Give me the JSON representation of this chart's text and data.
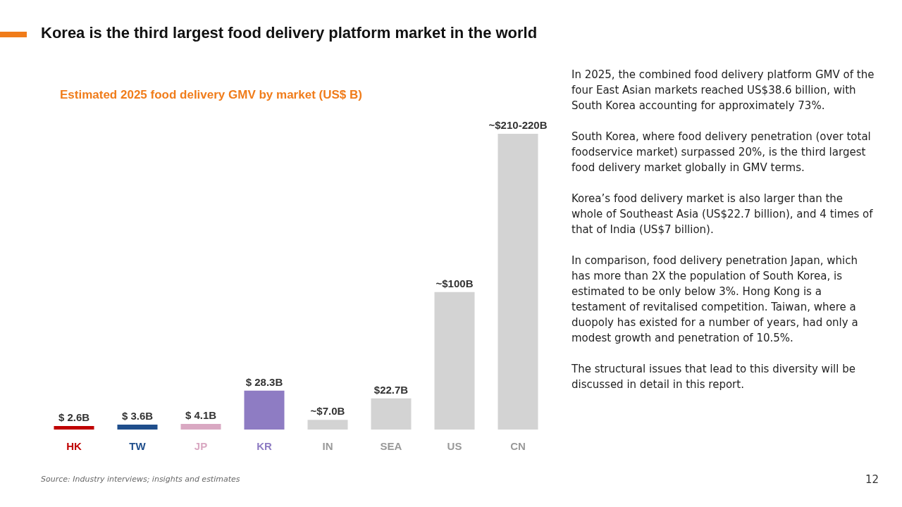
{
  "chart_data": {
    "type": "bar",
    "title": "Korea is the third largest food delivery platform market in the world",
    "subtitle": "Estimated 2025 food delivery GMV by market (US$ B)",
    "categories": [
      "HK",
      "TW",
      "JP",
      "KR",
      "IN",
      "SEA",
      "US",
      "CN"
    ],
    "values": [
      2.6,
      3.6,
      4.1,
      28.3,
      7.0,
      22.7,
      100,
      215
    ],
    "colors": [
      "#c00000",
      "#1f4e8c",
      "#d9a8c2",
      "#8e7cc3",
      "#d3d3d3",
      "#d3d3d3",
      "#d3d3d3",
      "#d3d3d3"
    ],
    "value_labels": [
      "$ 2.6B",
      "$ 3.6B",
      "$ 4.1B",
      "$ 28.3B",
      "~$7.0B",
      "$22.7B",
      "~$100B",
      "~$210-220B"
    ],
    "annotations": [
      "In 2025, the combined food delivery platform GMV of the four East Asian markets reached US$38.6 billion, with South Korea accounting for approximately 73%.",
      "South Korea, where food delivery penetration (over total foodservice market) surpassed 20%, is the third largest food delivery market globally in GMV terms.",
      "Korea’s food delivery market is also larger than the whole of Southeast Asia (US$22.7 billion), and 4 times of that of India (US$7 billion).",
      "In comparison, food delivery penetration Japan, which has more than 2X the population of South Korea, is estimated to be only below 3%. Hong Kong is a testament of revitalised competition. Taiwan, where a duopoly has existed for a number of years, had only a modest growth and penetration of 10.5%.",
      "The structural issues that lead to this diversity will be discussed in detail in this report.",
      "Source: Industry interviews; insights and estimates",
      "12"
    ]
  }
}
